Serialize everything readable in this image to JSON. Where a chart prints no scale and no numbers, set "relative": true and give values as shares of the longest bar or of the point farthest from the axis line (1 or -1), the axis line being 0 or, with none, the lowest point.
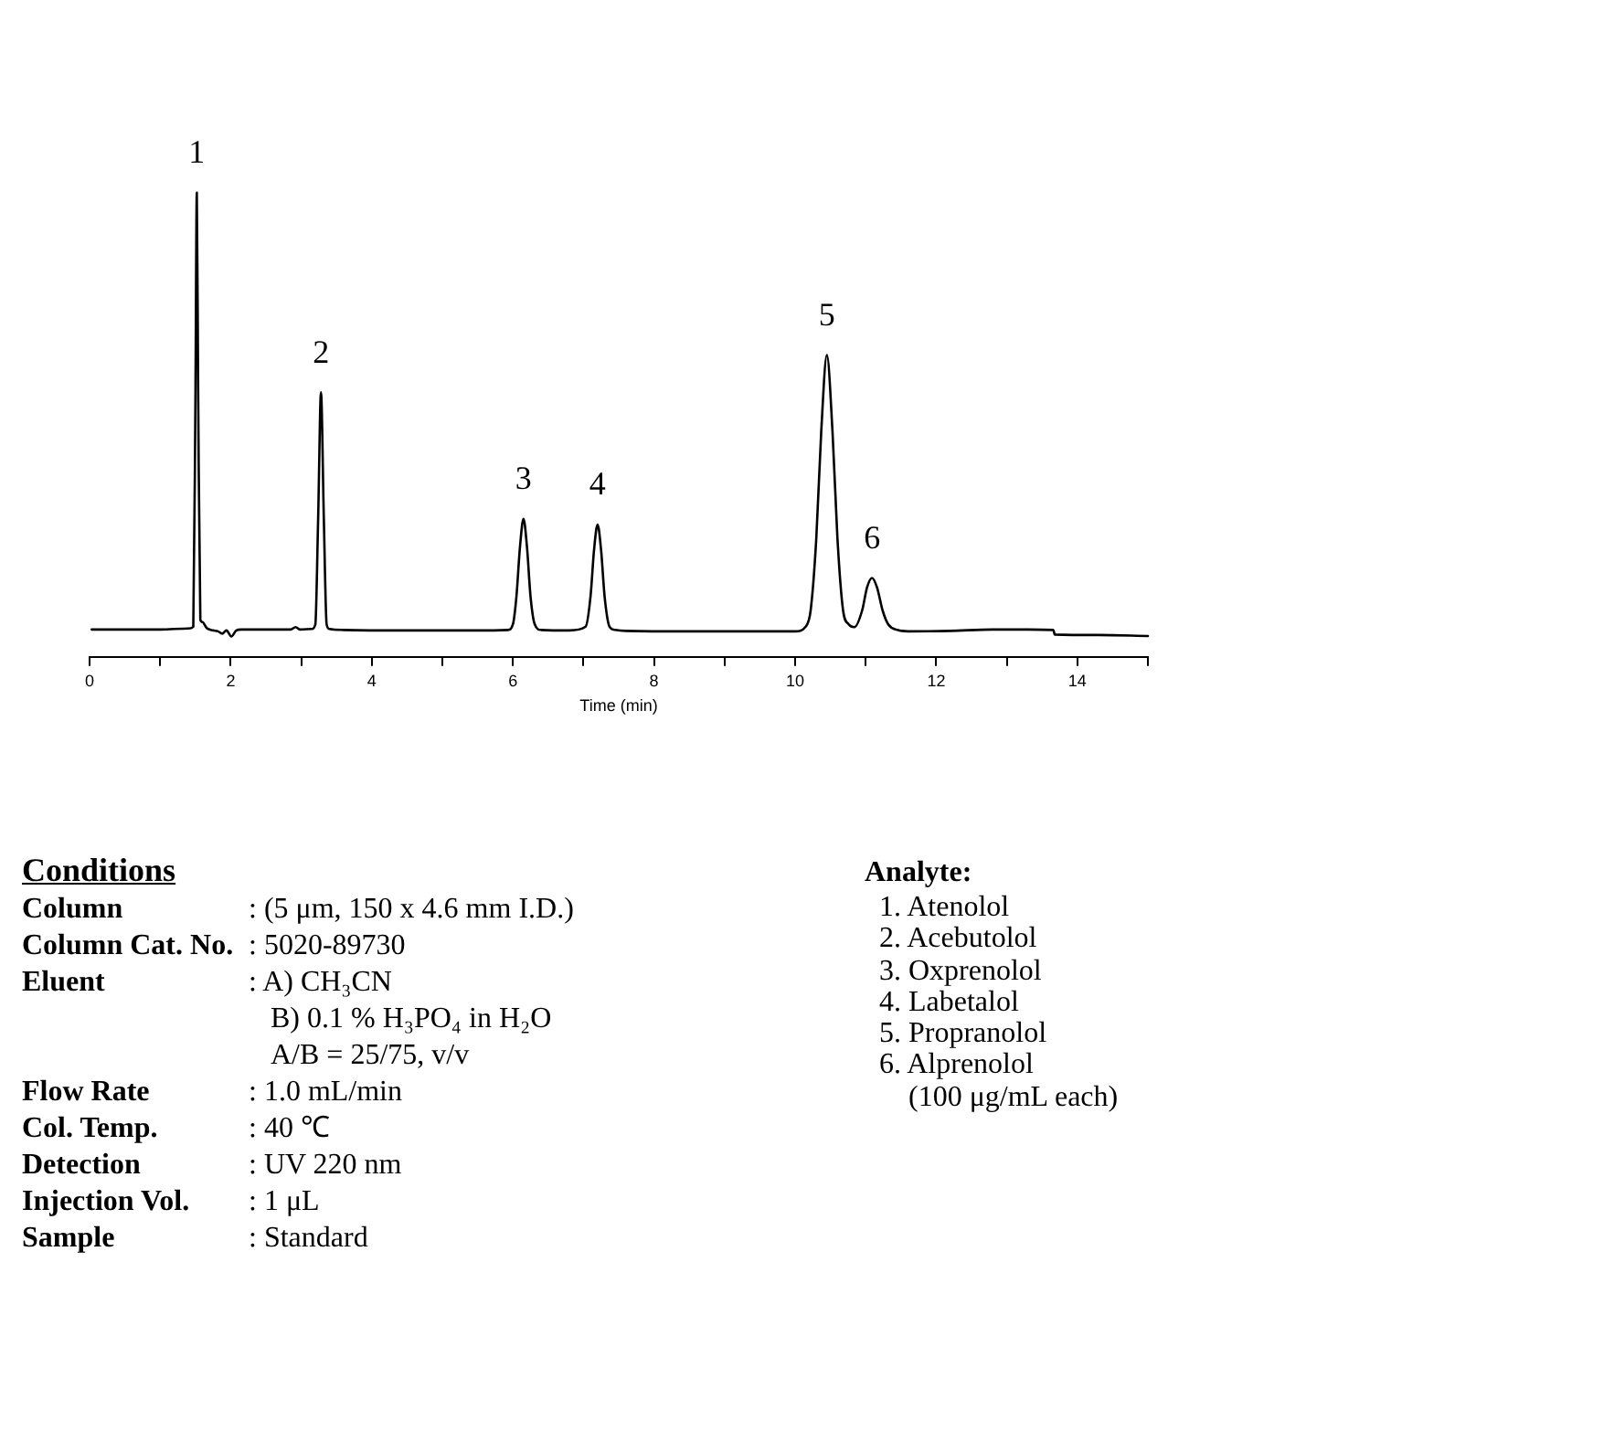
{
  "chart_data": {
    "type": "line",
    "relative": true,
    "marker": "none",
    "line_style": "solid",
    "xlabel": "Time (min)",
    "xlim": [
      0,
      15
    ],
    "xticks": [
      0,
      {
        "value": 1,
        "label": null
      },
      2,
      {
        "value": 3,
        "label": null
      },
      4,
      {
        "value": 5,
        "label": null
      },
      6,
      {
        "value": 7,
        "label": null
      },
      8,
      {
        "value": 9,
        "label": null
      },
      10,
      {
        "value": 11,
        "label": null
      },
      12,
      {
        "value": 13,
        "label": null
      },
      14,
      {
        "value": 15,
        "label": null
      }
    ],
    "x": [
      0.03,
      0.5,
      1.0,
      1.4,
      1.47,
      1.5,
      1.52,
      1.54,
      1.57,
      1.6,
      1.66,
      1.75,
      1.82,
      1.88,
      1.94,
      2.01,
      2.08,
      2.15,
      2.5,
      2.85,
      2.92,
      2.98,
      3.15,
      3.2,
      3.24,
      3.28,
      3.32,
      3.36,
      3.4,
      3.6,
      4.5,
      5.5,
      5.93,
      6.0,
      6.05,
      6.1,
      6.15,
      6.2,
      6.25,
      6.31,
      6.4,
      6.8,
      7.03,
      7.1,
      7.15,
      7.2,
      7.25,
      7.3,
      7.37,
      7.45,
      7.6,
      8.5,
      9.5,
      10.0,
      10.15,
      10.22,
      10.3,
      10.37,
      10.45,
      10.53,
      10.6,
      10.68,
      10.76,
      10.84,
      10.95,
      11.02,
      11.09,
      11.16,
      11.24,
      11.32,
      11.45,
      11.6,
      12.2,
      12.8,
      13.3,
      13.66,
      13.68,
      14.3,
      15.0
    ],
    "series": [
      {
        "color": "#000000",
        "values": [
          0.059,
          0.059,
          0.059,
          0.061,
          0.065,
          0.55,
          1,
          0.55,
          0.08,
          0.075,
          0.062,
          0.057,
          0.055,
          0.05,
          0.057,
          0.044,
          0.057,
          0.059,
          0.059,
          0.059,
          0.064,
          0.059,
          0.06,
          0.07,
          0.3,
          0.57,
          0.3,
          0.07,
          0.06,
          0.058,
          0.057,
          0.057,
          0.058,
          0.07,
          0.13,
          0.236,
          0.297,
          0.236,
          0.13,
          0.07,
          0.058,
          0.057,
          0.065,
          0.13,
          0.23,
          0.285,
          0.23,
          0.13,
          0.065,
          0.058,
          0.056,
          0.055,
          0.055,
          0.055,
          0.065,
          0.1,
          0.255,
          0.485,
          0.65,
          0.485,
          0.255,
          0.1,
          0.07,
          0.064,
          0.1,
          0.15,
          0.17,
          0.15,
          0.1,
          0.07,
          0.058,
          0.055,
          0.056,
          0.059,
          0.059,
          0.058,
          0.048,
          0.047,
          0.045
        ]
      }
    ],
    "annotations": [
      {
        "text": "1",
        "x": 1.52,
        "y": 1
      },
      {
        "text": "2",
        "x": 3.28,
        "y": 0.57
      },
      {
        "text": "3",
        "x": 6.15,
        "y": 0.297
      },
      {
        "text": "4",
        "x": 7.2,
        "y": 0.285
      },
      {
        "text": "5",
        "x": 10.45,
        "y": 0.65
      },
      {
        "text": "6",
        "x": 11.09,
        "y": 0.17
      },
      "Conditions",
      "Column : (5 μm, 150 x 4.6 mm I.D.)",
      "Column Cat. No. : 5020-89730",
      "Eluent : A) CH₃CN",
      "B) 0.1 % H₃PO₄ in H₂O",
      "A/B = 25/75, v/v",
      "Flow Rate : 1.0 mL/min",
      "Col. Temp. : 40 ℃",
      "Detection : UV 220 nm",
      "Injection Vol. : 1 μL",
      "Sample : Standard",
      "Analyte:",
      "1. Atenolol",
      "2. Acebutolol",
      "3. Oxprenolol",
      "4. Labetalol",
      "5. Propranolol",
      "6. Alprenolol",
      "(100 μg/mL each)"
    ]
  }
}
